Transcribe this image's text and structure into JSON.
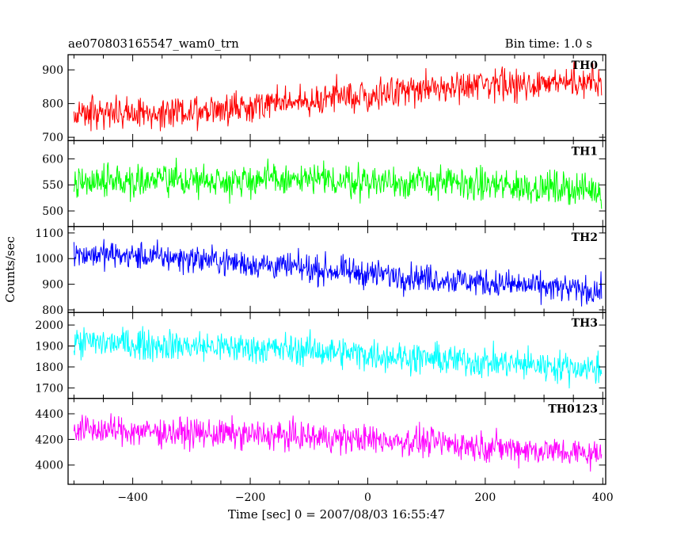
{
  "header": {
    "title": "ae070803165547_wam0_trn",
    "bin_time": "Bin time: 1.0 s"
  },
  "chart_data": {
    "type": "line",
    "xlabel": "Time [sec] 0 = 2007/08/03 16:55:47",
    "ylabel": "Counts/sec",
    "xlim": [
      -510,
      405
    ],
    "xticks": [
      -400,
      -200,
      0,
      200,
      400
    ],
    "x_range": [
      -500,
      398
    ],
    "bin_time_s": 1.0,
    "panels": [
      {
        "name": "TH0",
        "color": "#ff0000",
        "ylim": [
          690,
          945
        ],
        "yticks": [
          700,
          800,
          900
        ],
        "trend": [
          [
            -500,
            770
          ],
          [
            -300,
            775
          ],
          [
            -100,
            810
          ],
          [
            100,
            845
          ],
          [
            400,
            865
          ]
        ],
        "spread": 80
      },
      {
        "name": "TH1",
        "color": "#00ff00",
        "ylim": [
          470,
          635
        ],
        "yticks": [
          500,
          550,
          600
        ],
        "trend": [
          [
            -500,
            558
          ],
          [
            -200,
            560
          ],
          [
            100,
            555
          ],
          [
            400,
            540
          ]
        ],
        "spread": 55
      },
      {
        "name": "TH2",
        "color": "#0000ff",
        "ylim": [
          790,
          1125
        ],
        "yticks": [
          800,
          900,
          1000,
          1100
        ],
        "trend": [
          [
            -500,
            1020
          ],
          [
            -300,
            1000
          ],
          [
            -100,
            960
          ],
          [
            100,
            925
          ],
          [
            400,
            870
          ]
        ],
        "spread": 95
      },
      {
        "name": "TH3",
        "color": "#00ffff",
        "ylim": [
          1650,
          2060
        ],
        "yticks": [
          1700,
          1800,
          1900,
          2000
        ],
        "trend": [
          [
            -500,
            1920
          ],
          [
            -300,
            1900
          ],
          [
            -100,
            1880
          ],
          [
            100,
            1840
          ],
          [
            400,
            1790
          ]
        ],
        "spread": 130
      },
      {
        "name": "TH0123",
        "color": "#ff00ff",
        "ylim": [
          3850,
          4520
        ],
        "yticks": [
          4000,
          4200,
          4400
        ],
        "trend": [
          [
            -500,
            4280
          ],
          [
            -300,
            4250
          ],
          [
            -100,
            4220
          ],
          [
            100,
            4180
          ],
          [
            400,
            4080
          ]
        ],
        "spread": 200
      }
    ]
  }
}
